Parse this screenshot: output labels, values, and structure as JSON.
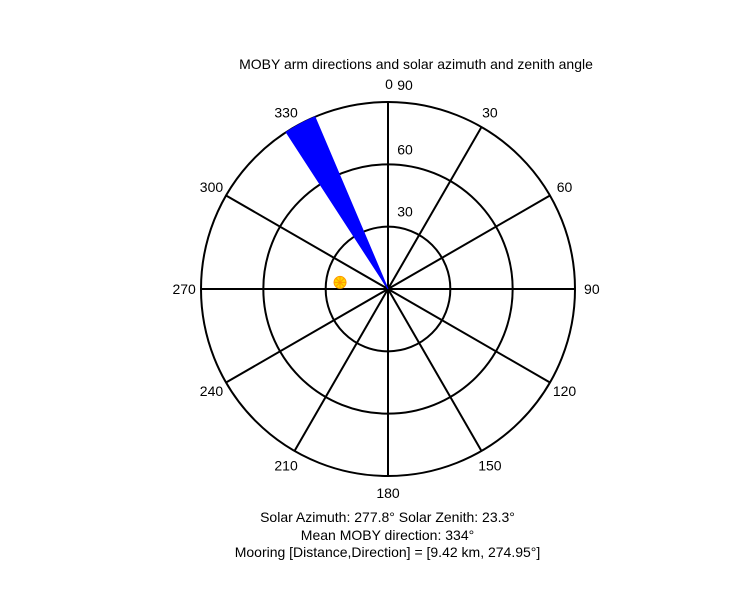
{
  "figure": {
    "title": "MOBY arm directions and solar azimuth and zenith angle",
    "background": "#ffffff"
  },
  "captions": {
    "line1": "Solar Azimuth: 277.8°   Solar Zenith: 23.3°",
    "line2": "Mean MOBY direction: 334°",
    "line3": "Mooring [Distance,Direction] = [9.42 km, 274.95°]"
  },
  "chart_data": {
    "type": "polar",
    "title": "MOBY arm directions and solar azimuth and zenith angle",
    "theta_zero_label": "0",
    "theta_direction": "clockwise",
    "theta_zero_location": "north",
    "angular_ticks": [
      0,
      30,
      60,
      90,
      120,
      150,
      180,
      210,
      240,
      270,
      300,
      330
    ],
    "angular_tick_labels": [
      "0",
      "30",
      "60",
      "90",
      "120",
      "150",
      "180",
      "210",
      "240",
      "270",
      "300",
      "330"
    ],
    "radial_ticks": [
      30,
      60,
      90
    ],
    "radial_tick_labels": [
      "30",
      "60",
      "90"
    ],
    "rlim": [
      0,
      90
    ],
    "grid": true,
    "series": [
      {
        "name": "MOBY arm directions",
        "type": "wedge",
        "color": "#0000ff",
        "theta_min": 327,
        "theta_max": 337,
        "r": 90,
        "mean_direction": 334
      },
      {
        "name": "Solar position",
        "type": "scatter",
        "marker": "star",
        "color": "#ffd700",
        "edge_color": "#ff9900",
        "theta": 277.8,
        "r": 23.3
      }
    ],
    "annotations": [
      "Solar Azimuth: 277.8°   Solar Zenith: 23.3°",
      "Mean MOBY direction: 334°",
      "Mooring [Distance,Direction] = [9.42 km, 274.95°]"
    ],
    "mooring": {
      "distance_km": 9.42,
      "direction_deg": 274.95
    }
  }
}
